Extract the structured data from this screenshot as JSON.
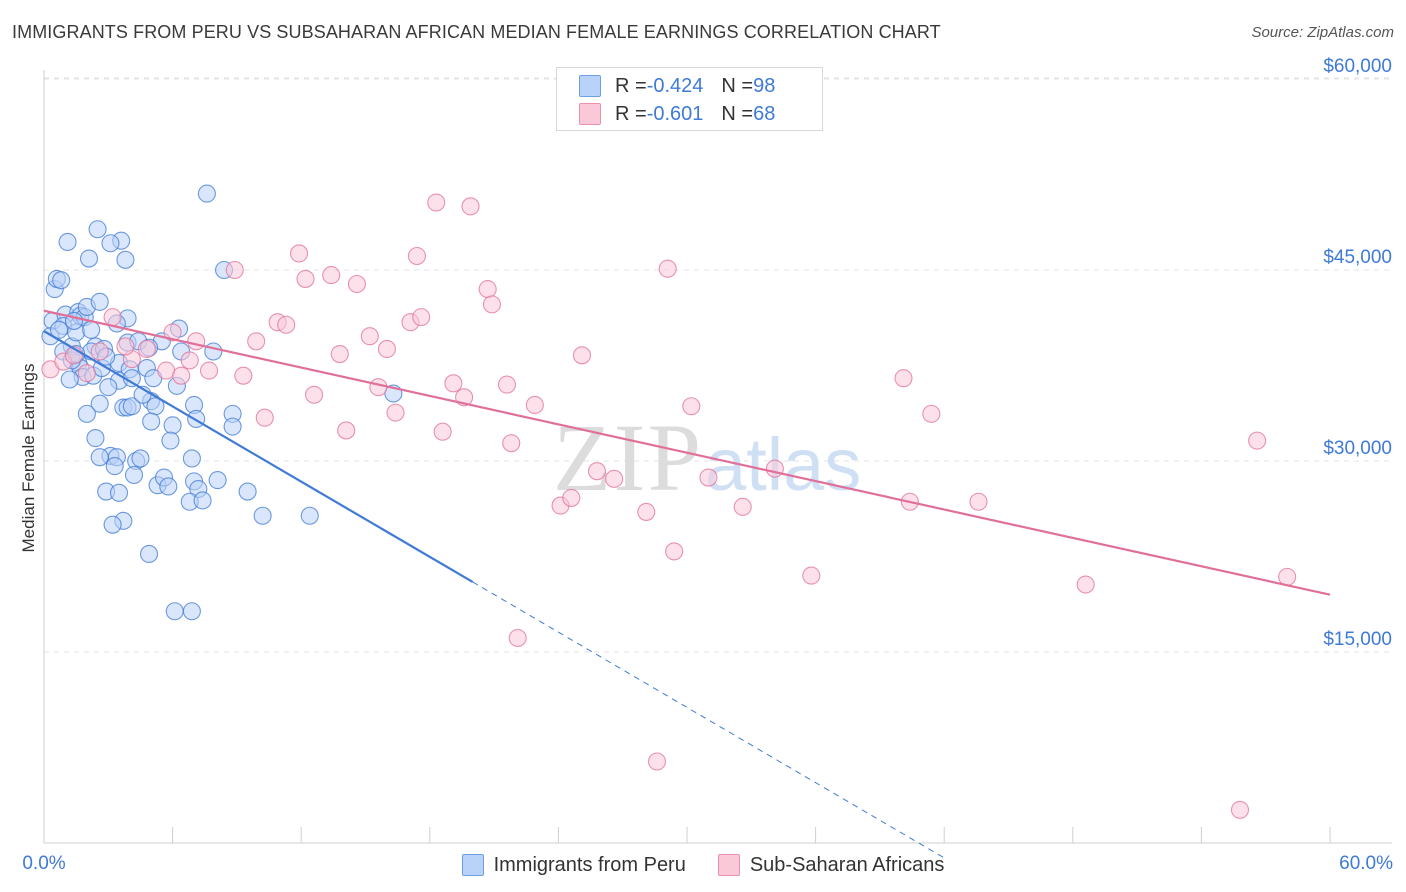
{
  "title": "IMMIGRANTS FROM PERU VS SUBSAHARAN AFRICAN MEDIAN FEMALE EARNINGS CORRELATION CHART",
  "source": "Source: ZipAtlas.com",
  "watermark": {
    "zip": "ZIP",
    "atlas": "atlas"
  },
  "stats": [
    {
      "r_label": "R = ",
      "r_value": "-0.424",
      "n_label": "N = ",
      "n_value": "98",
      "color": "#6f9ee8",
      "fill": "#b9d2f7"
    },
    {
      "r_label": "R = ",
      "r_value": "-0.601",
      "n_label": "N = ",
      "n_value": "68",
      "color": "#ee8fb0",
      "fill": "#f9c9d8"
    }
  ],
  "chart_data": {
    "type": "scatter",
    "title": "IMMIGRANTS FROM PERU VS SUBSAHARAN AFRICAN MEDIAN FEMALE EARNINGS CORRELATION CHART",
    "xlabel": "",
    "ylabel": "Median Female Earnings",
    "xlim": [
      0,
      60
    ],
    "ylim": [
      0,
      62000
    ],
    "x_tick_labels": [
      "0.0%",
      "60.0%"
    ],
    "y_ticks": [
      {
        "value": 15000,
        "label": "$15,000"
      },
      {
        "value": 30000,
        "label": "$30,000"
      },
      {
        "value": 45000,
        "label": "$45,000"
      },
      {
        "value": 60000,
        "label": "$60,000"
      }
    ],
    "grid": true,
    "series": [
      {
        "name": "Immigrants from Peru",
        "color": "#3f7ad6",
        "marker_fill": "#b9d2f7",
        "trend": {
          "x0": 0,
          "y0": 40200,
          "x1": 20,
          "y1": 20500,
          "dash_to_x": 42
        },
        "points": [
          [
            0.4,
            41000
          ],
          [
            0.3,
            39800
          ],
          [
            0.5,
            43500
          ],
          [
            0.6,
            44300
          ],
          [
            0.8,
            44200
          ],
          [
            1.1,
            47200
          ],
          [
            1.0,
            41500
          ],
          [
            0.9,
            40600
          ],
          [
            1.3,
            39000
          ],
          [
            1.5,
            40100
          ],
          [
            1.6,
            41700
          ],
          [
            1.7,
            41400
          ],
          [
            1.9,
            41300
          ],
          [
            2.1,
            45900
          ],
          [
            2.5,
            48200
          ],
          [
            3.6,
            47300
          ],
          [
            3.8,
            45800
          ],
          [
            2.0,
            42100
          ],
          [
            3.1,
            47100
          ],
          [
            2.6,
            42500
          ],
          [
            3.9,
            41200
          ],
          [
            3.9,
            39300
          ],
          [
            3.4,
            40800
          ],
          [
            2.4,
            39000
          ],
          [
            2.2,
            38600
          ],
          [
            2.8,
            38800
          ],
          [
            3.5,
            37700
          ],
          [
            4.0,
            37200
          ],
          [
            4.8,
            37300
          ],
          [
            5.1,
            36500
          ],
          [
            6.3,
            40400
          ],
          [
            7.9,
            38600
          ],
          [
            3.5,
            36300
          ],
          [
            1.6,
            37700
          ],
          [
            1.7,
            37300
          ],
          [
            1.8,
            36600
          ],
          [
            2.3,
            36700
          ],
          [
            1.2,
            36400
          ],
          [
            2.6,
            34500
          ],
          [
            3.7,
            34200
          ],
          [
            3.9,
            34200
          ],
          [
            4.1,
            34300
          ],
          [
            5.0,
            34700
          ],
          [
            4.6,
            35200
          ],
          [
            5.2,
            34300
          ],
          [
            7.0,
            34400
          ],
          [
            8.8,
            33700
          ],
          [
            4.1,
            36500
          ],
          [
            2.0,
            33700
          ],
          [
            2.4,
            31800
          ],
          [
            5.0,
            33100
          ],
          [
            6.0,
            32800
          ],
          [
            7.1,
            33300
          ],
          [
            8.8,
            32700
          ],
          [
            3.1,
            30400
          ],
          [
            2.6,
            30300
          ],
          [
            3.4,
            30300
          ],
          [
            4.3,
            30000
          ],
          [
            4.5,
            30200
          ],
          [
            6.9,
            30200
          ],
          [
            7.0,
            28400
          ],
          [
            5.3,
            28100
          ],
          [
            5.6,
            28700
          ],
          [
            5.8,
            28000
          ],
          [
            7.2,
            27800
          ],
          [
            8.1,
            28500
          ],
          [
            2.9,
            27600
          ],
          [
            3.5,
            27500
          ],
          [
            6.8,
            26800
          ],
          [
            9.5,
            27600
          ],
          [
            10.2,
            25700
          ],
          [
            12.4,
            25700
          ],
          [
            3.7,
            25300
          ],
          [
            3.2,
            25000
          ],
          [
            4.9,
            22700
          ],
          [
            6.1,
            18200
          ],
          [
            6.9,
            18200
          ],
          [
            7.6,
            51000
          ],
          [
            8.4,
            45000
          ],
          [
            16.3,
            35300
          ],
          [
            0.7,
            40300
          ],
          [
            1.4,
            41000
          ],
          [
            2.7,
            37300
          ],
          [
            4.4,
            39400
          ],
          [
            5.9,
            31600
          ],
          [
            0.9,
            38600
          ],
          [
            1.3,
            37900
          ],
          [
            2.2,
            40300
          ],
          [
            6.4,
            38600
          ],
          [
            3.0,
            35800
          ],
          [
            5.5,
            39400
          ],
          [
            4.9,
            38900
          ],
          [
            2.9,
            38200
          ],
          [
            1.5,
            38400
          ],
          [
            6.2,
            35900
          ],
          [
            3.3,
            29600
          ],
          [
            4.2,
            28900
          ],
          [
            7.4,
            26900
          ]
        ]
      },
      {
        "name": "Sub-Saharan Africans",
        "color": "#e0709a",
        "marker_fill": "#f9c9d8",
        "trend": {
          "x0": 0,
          "y0": 41800,
          "x1": 60,
          "y1": 19500
        },
        "points": [
          [
            0.3,
            37200
          ],
          [
            0.9,
            37800
          ],
          [
            1.4,
            38300
          ],
          [
            2.6,
            38600
          ],
          [
            3.2,
            41300
          ],
          [
            4.1,
            38000
          ],
          [
            4.8,
            38800
          ],
          [
            5.7,
            37100
          ],
          [
            6.4,
            36700
          ],
          [
            6.8,
            37900
          ],
          [
            7.1,
            39400
          ],
          [
            7.7,
            37100
          ],
          [
            9.3,
            36700
          ],
          [
            9.9,
            39400
          ],
          [
            10.3,
            33400
          ],
          [
            10.9,
            40900
          ],
          [
            11.3,
            40700
          ],
          [
            11.9,
            46300
          ],
          [
            12.2,
            44300
          ],
          [
            13.4,
            44600
          ],
          [
            13.8,
            38400
          ],
          [
            14.1,
            32400
          ],
          [
            14.6,
            43900
          ],
          [
            15.2,
            39800
          ],
          [
            15.6,
            35800
          ],
          [
            16.4,
            33800
          ],
          [
            17.1,
            40900
          ],
          [
            17.4,
            46100
          ],
          [
            17.6,
            41300
          ],
          [
            18.3,
            50300
          ],
          [
            18.6,
            32300
          ],
          [
            19.1,
            36100
          ],
          [
            19.6,
            35000
          ],
          [
            19.9,
            50000
          ],
          [
            20.7,
            43500
          ],
          [
            20.9,
            42300
          ],
          [
            21.6,
            36000
          ],
          [
            21.8,
            31400
          ],
          [
            22.9,
            34400
          ],
          [
            24.1,
            26500
          ],
          [
            24.6,
            27100
          ],
          [
            25.1,
            38300
          ],
          [
            25.8,
            29200
          ],
          [
            26.6,
            28600
          ],
          [
            28.1,
            26000
          ],
          [
            29.1,
            45100
          ],
          [
            29.4,
            22900
          ],
          [
            30.2,
            34300
          ],
          [
            31.0,
            28700
          ],
          [
            32.6,
            26400
          ],
          [
            34.1,
            29400
          ],
          [
            35.8,
            21000
          ],
          [
            40.1,
            36500
          ],
          [
            40.4,
            26800
          ],
          [
            41.4,
            33700
          ],
          [
            43.6,
            26800
          ],
          [
            48.6,
            20300
          ],
          [
            56.6,
            31600
          ],
          [
            58.0,
            20900
          ],
          [
            22.1,
            16100
          ],
          [
            28.6,
            6400
          ],
          [
            55.8,
            2600
          ],
          [
            8.9,
            45000
          ],
          [
            16.0,
            38800
          ],
          [
            12.6,
            35200
          ],
          [
            6.0,
            40100
          ],
          [
            3.8,
            39000
          ],
          [
            2.0,
            36900
          ]
        ]
      }
    ]
  }
}
